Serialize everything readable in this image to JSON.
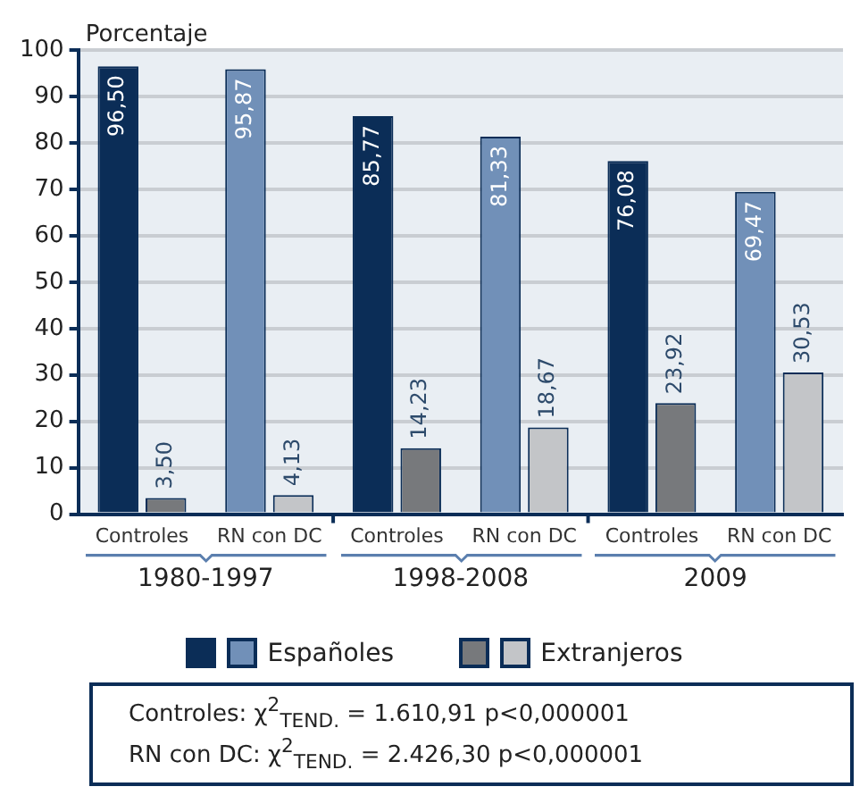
{
  "chart_data": {
    "type": "bar",
    "ylabel": "Porcentaje",
    "categories": [
      "Controles",
      "RN con DC",
      "Controles",
      "RN con DC",
      "Controles",
      "RN con DC"
    ],
    "series": [
      {
        "name": "Españoles",
        "colors": [
          "#0b2d57",
          "#7190b8",
          "#0b2d57",
          "#7190b8",
          "#0b2d57",
          "#7190b8"
        ],
        "values": [
          96.5,
          95.87,
          85.77,
          81.33,
          76.08,
          69.47
        ],
        "value_labels": [
          "96,50",
          "95,87",
          "85,77",
          "81,33",
          "76,08",
          "69,47"
        ]
      },
      {
        "name": "Extranjeros",
        "colors": [
          "#77797c",
          "#c3c5c8",
          "#77797c",
          "#c3c5c8",
          "#77797c",
          "#c3c5c8"
        ],
        "values": [
          3.5,
          4.13,
          14.23,
          18.67,
          23.92,
          30.53
        ],
        "value_labels": [
          "3,50",
          "4,13",
          "14,23",
          "18,67",
          "23,92",
          "30,53"
        ]
      }
    ],
    "ylim": [
      0,
      100
    ],
    "yticks": [
      0,
      10,
      20,
      30,
      40,
      50,
      60,
      70,
      80,
      90,
      100
    ],
    "grid": "y",
    "legend": "bottom",
    "annotations": [
      "1980-1997",
      "1998-2008",
      "2009",
      "Controles: χ$^{2}$$_{TEND.}$ = 1.610,91 p<0,000001",
      "RN con DC: χ$^{2}$$_{TEND.}$ = 2.426,30 p<0,000001"
    ]
  }
}
